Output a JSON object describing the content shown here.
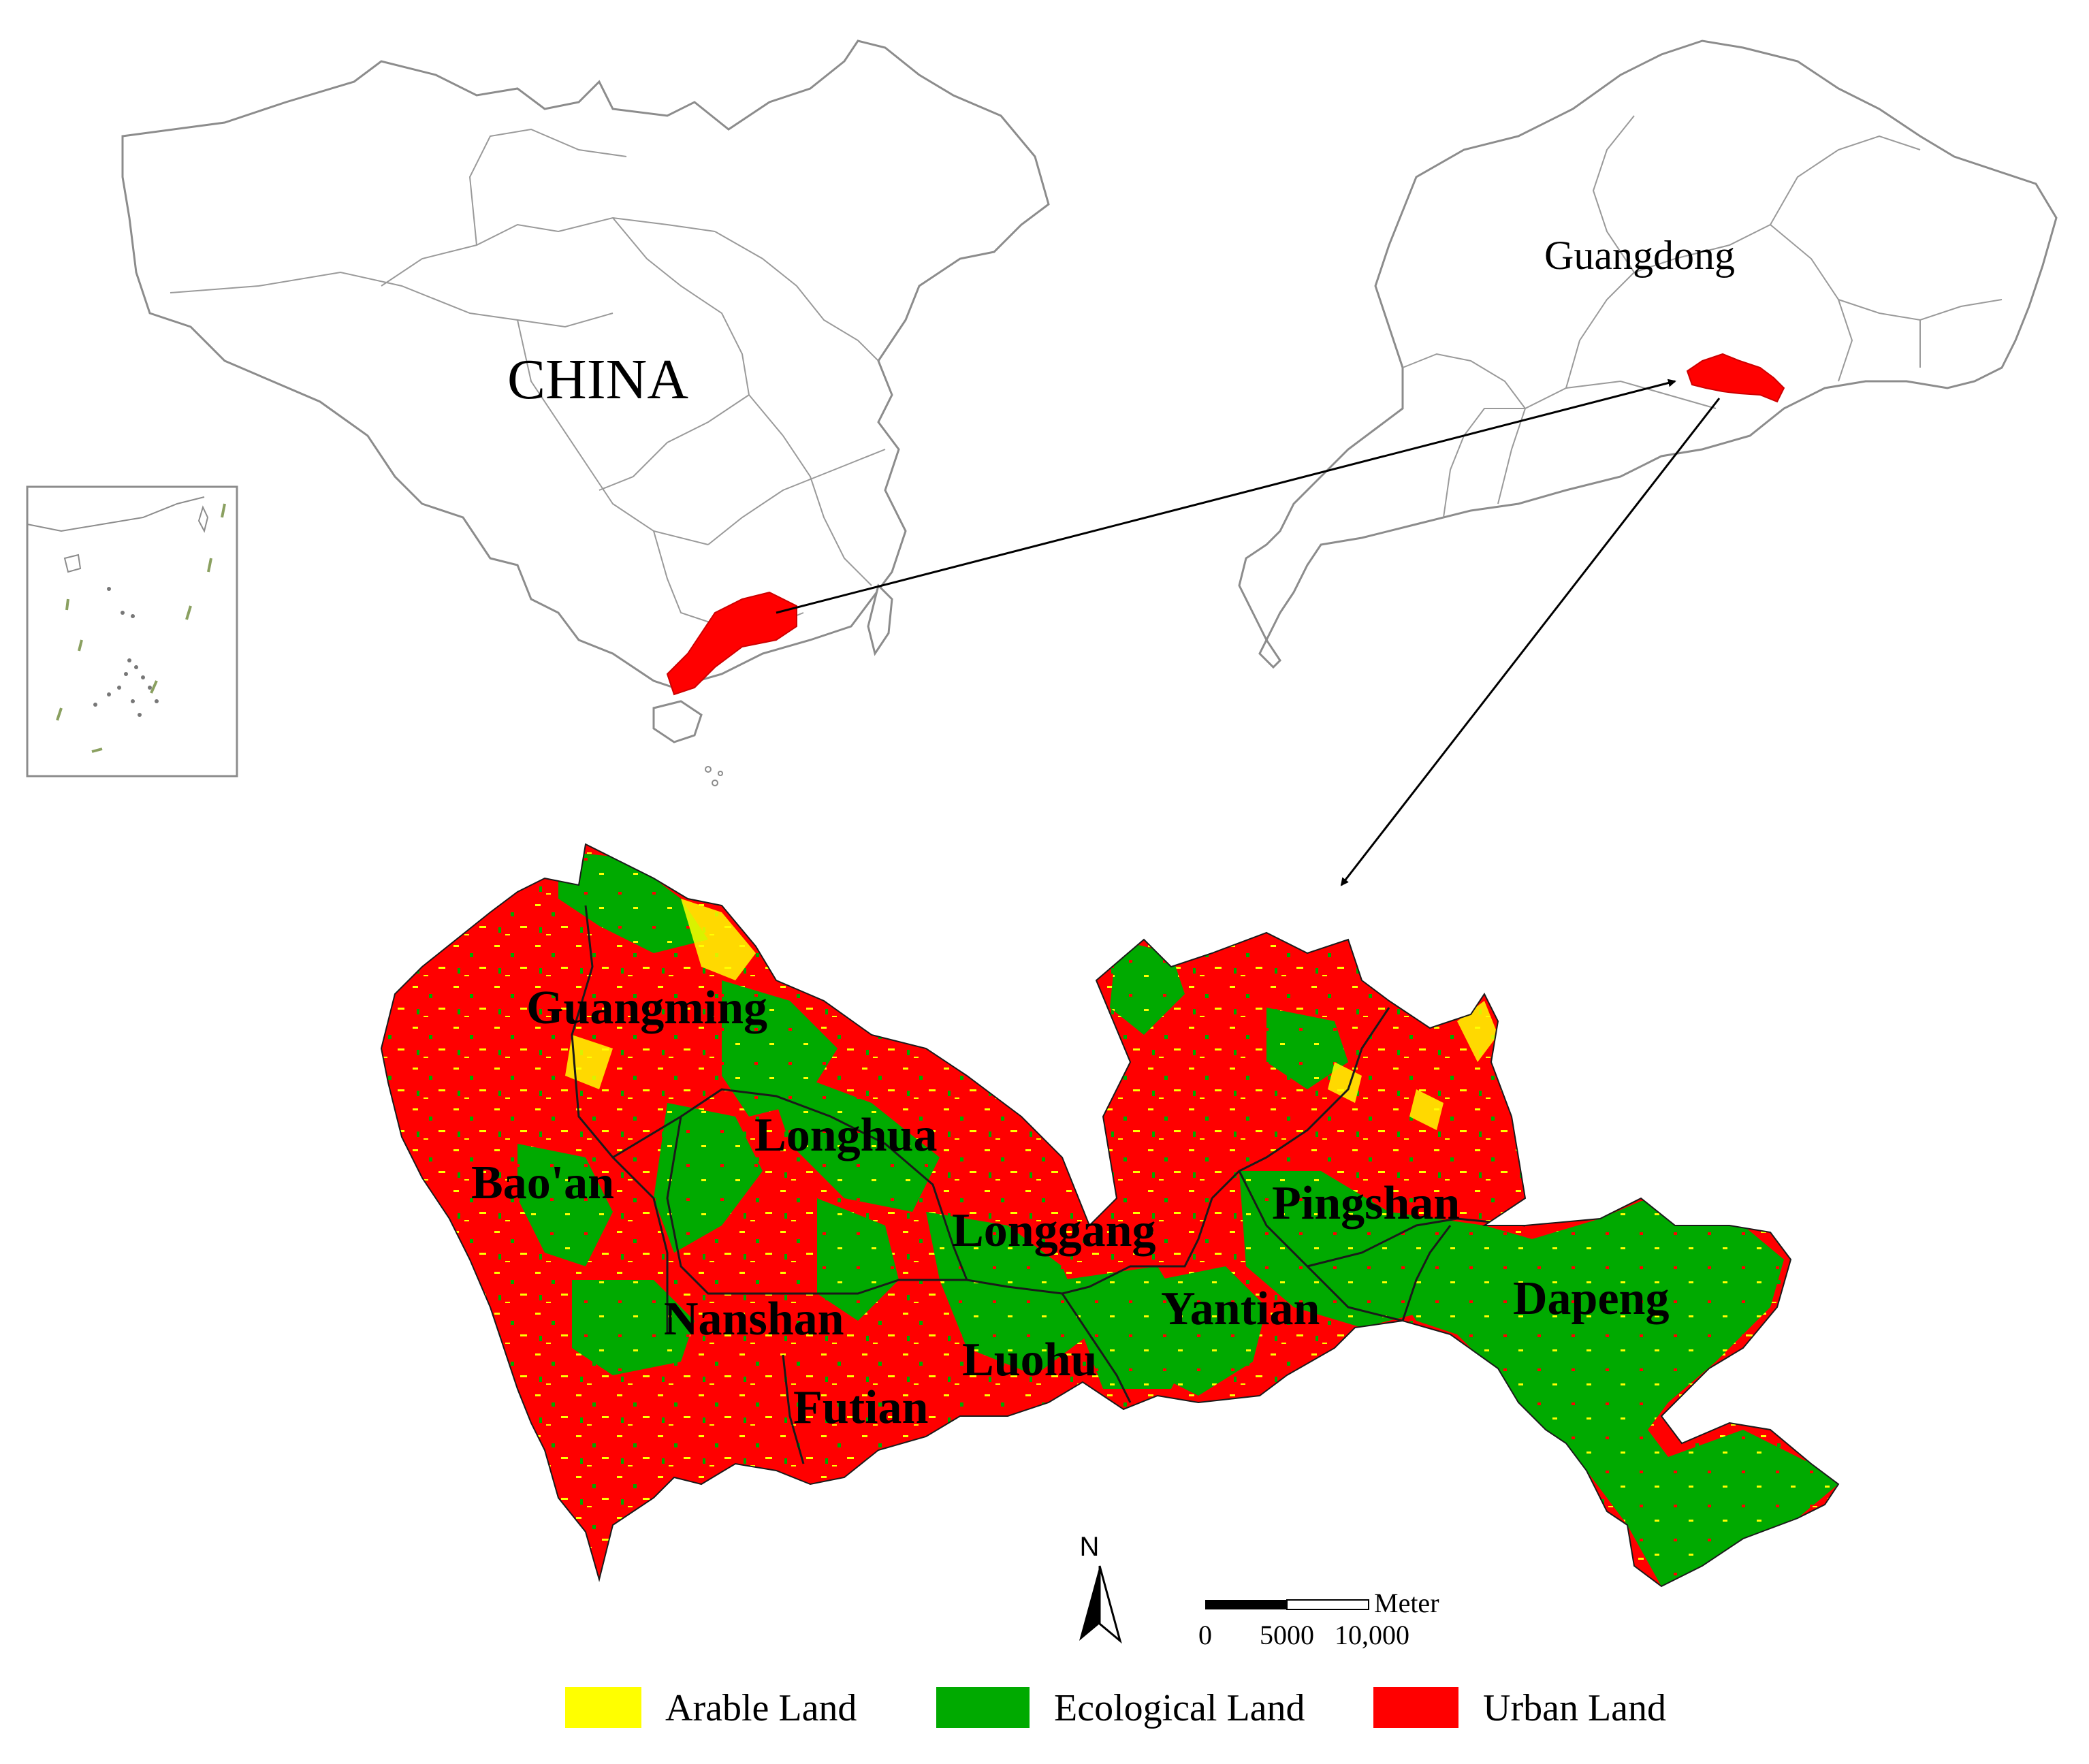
{
  "labels": {
    "china": "CHINA",
    "guangdong": "Guangdong"
  },
  "districts": [
    {
      "id": "guangming",
      "name": "Guangming"
    },
    {
      "id": "longhua",
      "name": "Longhua"
    },
    {
      "id": "baoan",
      "name": "Bao'an"
    },
    {
      "id": "longgang",
      "name": "Longgang"
    },
    {
      "id": "pingshan",
      "name": "Pingshan"
    },
    {
      "id": "nanshan",
      "name": "Nanshan"
    },
    {
      "id": "yantian",
      "name": "Yantian"
    },
    {
      "id": "dapeng",
      "name": "Dapeng"
    },
    {
      "id": "luohu",
      "name": "Luohu"
    },
    {
      "id": "futian",
      "name": "Futian"
    }
  ],
  "north_arrow": {
    "label": "N"
  },
  "scale_bar": {
    "unit": "Meter",
    "ticks": [
      "0",
      "5000",
      "10,000"
    ]
  },
  "legend": [
    {
      "label": "Arable Land",
      "color": "#ffff00"
    },
    {
      "label": "Ecological Land",
      "color": "#00aa00"
    },
    {
      "label": "Urban Land",
      "color": "#ff0000"
    }
  ],
  "colors": {
    "highlight": "#ff0000",
    "ecological": "#00aa00",
    "urban": "#ff0000",
    "arable": "#ffff00",
    "outline": "#8c8c8c"
  }
}
